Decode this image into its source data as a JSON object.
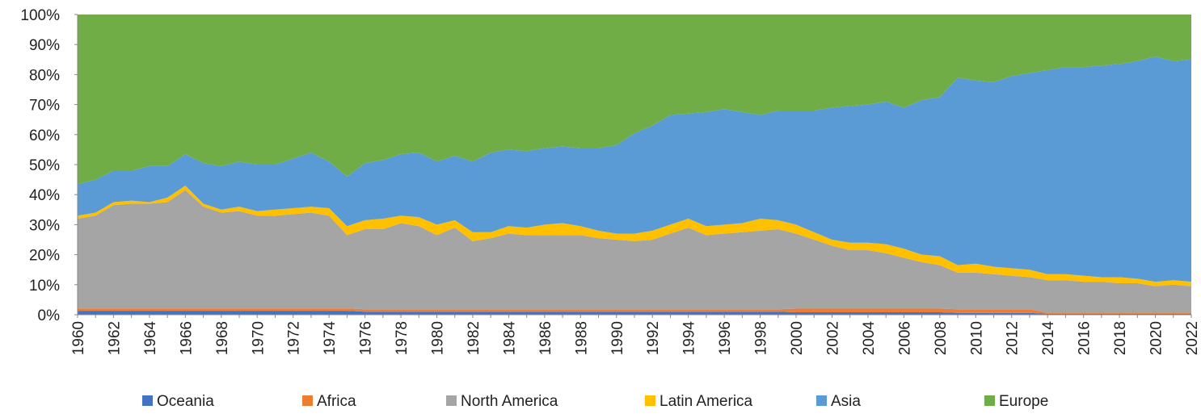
{
  "chart_data": {
    "type": "stacked-area-100",
    "categories": [
      "1960",
      null,
      "1962",
      null,
      "1964",
      null,
      "1966",
      null,
      "1968",
      null,
      "1970",
      null,
      "1972",
      null,
      "1974",
      null,
      "1976",
      null,
      "1978",
      null,
      "1980",
      null,
      "1982",
      null,
      "1984",
      null,
      "1986",
      null,
      "1988",
      null,
      "1990",
      null,
      "1992",
      null,
      "1994",
      null,
      "1996",
      null,
      "1998",
      null,
      "2000",
      null,
      "2002",
      null,
      "2004",
      null,
      "2006",
      null,
      "2008",
      null,
      "2010",
      null,
      "2012",
      null,
      "2014",
      null,
      "2016",
      null,
      "2018",
      null,
      "2020",
      null,
      "2022"
    ],
    "ylim": [
      0,
      100
    ],
    "yticks": [
      {
        "value": 0,
        "label": "0%"
      },
      {
        "value": 10,
        "label": "10%"
      },
      {
        "value": 20,
        "label": "20%"
      },
      {
        "value": 30,
        "label": "30%"
      },
      {
        "value": 40,
        "label": "40%"
      },
      {
        "value": 50,
        "label": "50%"
      },
      {
        "value": 60,
        "label": "60%"
      },
      {
        "value": 70,
        "label": "70%"
      },
      {
        "value": 80,
        "label": "80%"
      },
      {
        "value": 90,
        "label": "90%"
      },
      {
        "value": 100,
        "label": "100%"
      }
    ],
    "legend": "bottom",
    "series": [
      {
        "name": "Oceania",
        "color": "#4472c4",
        "values": [
          1.3,
          1.3,
          1.3,
          1.3,
          1.3,
          1.3,
          1.3,
          1.3,
          1.3,
          1.3,
          1.3,
          1.3,
          1.3,
          1.3,
          1.3,
          1.3,
          1.0,
          1.0,
          1.0,
          1.0,
          1.0,
          1.0,
          1.0,
          1.0,
          1.0,
          1.0,
          1.0,
          1.0,
          1.0,
          1.0,
          1.0,
          1.0,
          1.0,
          1.0,
          1.0,
          1.0,
          1.0,
          1.0,
          1.0,
          1.0,
          0.8,
          0.8,
          0.8,
          0.8,
          0.8,
          0.8,
          0.8,
          0.8,
          0.8,
          0.6,
          0.6,
          0.6,
          0.6,
          0.6,
          0.3,
          0.3,
          0.3,
          0.3,
          0.3,
          0.3,
          0.3,
          0.3,
          0.3
        ]
      },
      {
        "name": "Africa",
        "color": "#ed7d31",
        "values": [
          0.8,
          0.8,
          0.8,
          0.8,
          0.8,
          0.8,
          0.8,
          0.8,
          0.8,
          0.8,
          0.8,
          0.8,
          0.8,
          0.8,
          0.8,
          0.8,
          0.8,
          0.8,
          0.8,
          0.8,
          0.8,
          0.8,
          0.8,
          0.8,
          0.8,
          0.8,
          0.8,
          0.8,
          0.8,
          0.8,
          0.8,
          0.8,
          0.8,
          0.8,
          0.8,
          0.8,
          0.8,
          0.8,
          0.8,
          0.8,
          1.2,
          1.2,
          1.2,
          1.2,
          1.2,
          1.2,
          1.2,
          1.2,
          1.2,
          1.2,
          1.2,
          1.2,
          1.2,
          1.2,
          0.4,
          0.4,
          0.4,
          0.4,
          0.4,
          0.4,
          0.4,
          0.4,
          0.4
        ]
      },
      {
        "name": "North America",
        "color": "#a5a5a5",
        "values": [
          29.9,
          30.9,
          34.4,
          34.9,
          34.9,
          35.4,
          39.4,
          33.9,
          31.9,
          32.4,
          30.9,
          30.9,
          31.4,
          31.9,
          30.9,
          24.4,
          26.7,
          26.7,
          28.7,
          27.7,
          24.7,
          27.2,
          22.7,
          23.7,
          25.2,
          24.7,
          24.7,
          24.7,
          24.7,
          23.7,
          23.2,
          22.7,
          23.2,
          25.2,
          27.2,
          24.7,
          25.2,
          25.7,
          26.2,
          26.7,
          25,
          23,
          21,
          19.5,
          19.5,
          18.5,
          17,
          15.5,
          14.5,
          12.2,
          12.2,
          11.7,
          11.2,
          10.7,
          10.8,
          10.8,
          10.3,
          10.3,
          9.8,
          9.8,
          8.8,
          9.3,
          8.8
        ]
      },
      {
        "name": "Latin America",
        "color": "#ffc000",
        "values": [
          1,
          1,
          1,
          1,
          0.5,
          1.5,
          1.5,
          1,
          1,
          1.5,
          1.5,
          2,
          2,
          2,
          2.5,
          3,
          3,
          3.5,
          2.5,
          3,
          3.5,
          2.5,
          3,
          2,
          2.5,
          2.5,
          3.5,
          4,
          3,
          2.5,
          2,
          2.5,
          3,
          3,
          3,
          3,
          3,
          3,
          4,
          3,
          3,
          2.5,
          2,
          2.5,
          2.5,
          3,
          3,
          2.5,
          3,
          2.5,
          3,
          2.5,
          2.5,
          2.5,
          2,
          2,
          2,
          1.5,
          2,
          1.5,
          1.5,
          1.5,
          1.5
        ]
      },
      {
        "name": "Asia",
        "color": "#5b9bd5",
        "values": [
          10.5,
          11,
          10.5,
          10,
          12,
          10.5,
          10.5,
          13.5,
          14.5,
          15,
          15.5,
          15,
          16.5,
          18,
          15.5,
          16.5,
          19,
          19.5,
          20.5,
          21.5,
          21,
          21.5,
          23.5,
          26.5,
          25.5,
          25.5,
          25.5,
          25.5,
          26,
          27.5,
          29.5,
          33.5,
          35,
          36.5,
          35,
          38,
          38.5,
          37,
          34.5,
          36.5,
          38,
          40.5,
          44,
          45.5,
          46,
          47.5,
          47,
          51.5,
          53,
          62.5,
          61,
          61.5,
          64,
          65.5,
          68,
          69,
          69.5,
          70.5,
          71,
          72.5,
          75,
          73,
          74
        ]
      },
      {
        "name": "Europe",
        "color": "#70ad47",
        "values": [
          56.5,
          55,
          52,
          52,
          50.5,
          50.5,
          46.5,
          49.5,
          50.5,
          49,
          50,
          50,
          48,
          46,
          49,
          54,
          49.5,
          48.5,
          46.5,
          46,
          49,
          47,
          49,
          46,
          45,
          45.5,
          44.5,
          44,
          44.5,
          44.5,
          43.5,
          39.5,
          37,
          33.5,
          33,
          32.5,
          31.5,
          32.5,
          33.5,
          32,
          32,
          32,
          31,
          30.5,
          30,
          29,
          31,
          28.5,
          27.5,
          21,
          22,
          22.5,
          20.5,
          19.5,
          18.5,
          17.5,
          17.5,
          17,
          16.5,
          15.5,
          14,
          15.5,
          15
        ]
      }
    ]
  }
}
